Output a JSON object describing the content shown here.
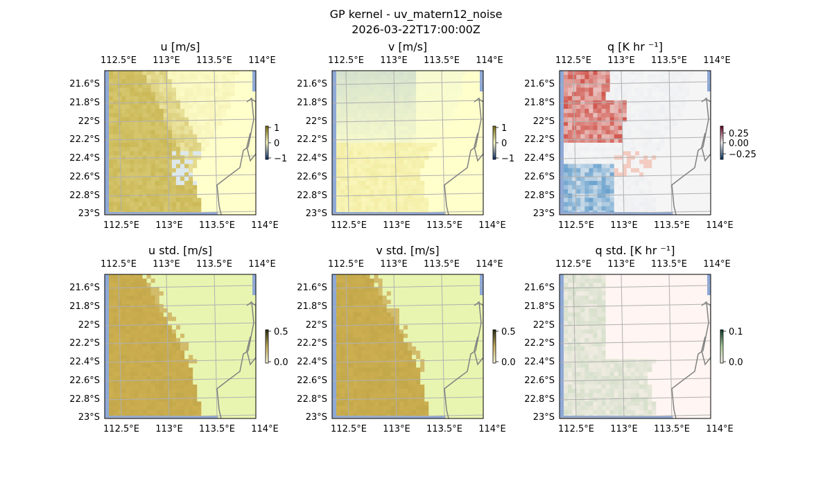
{
  "figure": {
    "title": "GP kernel - uv_matern12_noise",
    "subtitle": "2026-03-22T17:00:00Z"
  },
  "lon_ticks": [
    "112.5°E",
    "113°E",
    "113.5°E",
    "114°E"
  ],
  "lat_ticks": [
    "21.6°S",
    "21.8°S",
    "22°S",
    "22.2°S",
    "22.4°S",
    "22.6°S",
    "22.8°S",
    "23°S"
  ],
  "chart_data": [
    {
      "type": "heatmap",
      "title": "u [m/s]",
      "variable": "u",
      "colormap": "khaki-blue diverging",
      "colorbar": {
        "ticks": [
          "1",
          "0",
          "−1"
        ],
        "range": [
          -1,
          1
        ]
      },
      "pattern": "west-high",
      "lon_range": [
        112.4,
        114.2
      ],
      "lat_range": [
        -23.0,
        -21.5
      ]
    },
    {
      "type": "heatmap",
      "title": "v [m/s]",
      "variable": "v",
      "colormap": "khaki-blue diverging",
      "colorbar": {
        "ticks": [
          "1",
          "0",
          "−1"
        ],
        "range": [
          -1,
          1
        ]
      },
      "pattern": "north-blue-south-yellow",
      "lon_range": [
        112.4,
        114.2
      ],
      "lat_range": [
        -23.0,
        -21.5
      ]
    },
    {
      "type": "heatmap",
      "title": "q [K hr ⁻¹]",
      "variable": "q",
      "colormap": "RdBu_r",
      "colorbar": {
        "ticks": [
          "0.25",
          "0.00",
          "−0.25"
        ],
        "range": [
          -0.3,
          0.3
        ]
      },
      "pattern": "red-northwest-blue-southwest",
      "lon_range": [
        112.4,
        114.2
      ],
      "lat_range": [
        -23.0,
        -21.5
      ]
    },
    {
      "type": "heatmap",
      "title": "u std. [m/s]",
      "variable": "u_std",
      "colormap": "yellow-khaki sequential",
      "colorbar": {
        "ticks": [
          "0.5",
          "0.0"
        ],
        "range": [
          0,
          0.5
        ]
      },
      "pattern": "west-high",
      "lon_range": [
        112.4,
        114.2
      ],
      "lat_range": [
        -23.0,
        -21.5
      ]
    },
    {
      "type": "heatmap",
      "title": "v std. [m/s]",
      "variable": "v_std",
      "colormap": "yellow-khaki sequential",
      "colorbar": {
        "ticks": [
          "0.5",
          "0.0"
        ],
        "range": [
          0,
          0.5
        ]
      },
      "pattern": "west-high",
      "lon_range": [
        112.4,
        114.2
      ],
      "lat_range": [
        -23.0,
        -21.5
      ]
    },
    {
      "type": "heatmap",
      "title": "q std. [K hr ⁻¹]",
      "variable": "q_std",
      "colormap": "pink-green sequential",
      "colorbar": {
        "ticks": [
          "0.1",
          "0.0"
        ],
        "range": [
          0,
          0.1
        ]
      },
      "pattern": "west-high",
      "lon_range": [
        112.4,
        114.2
      ],
      "lat_range": [
        -23.0,
        -21.5
      ]
    }
  ],
  "colors": {
    "ocean_edge": "#8fa9d6",
    "coastline": "#808080",
    "gridline": "#b0b0b0",
    "land_bg": "#fffff0"
  }
}
